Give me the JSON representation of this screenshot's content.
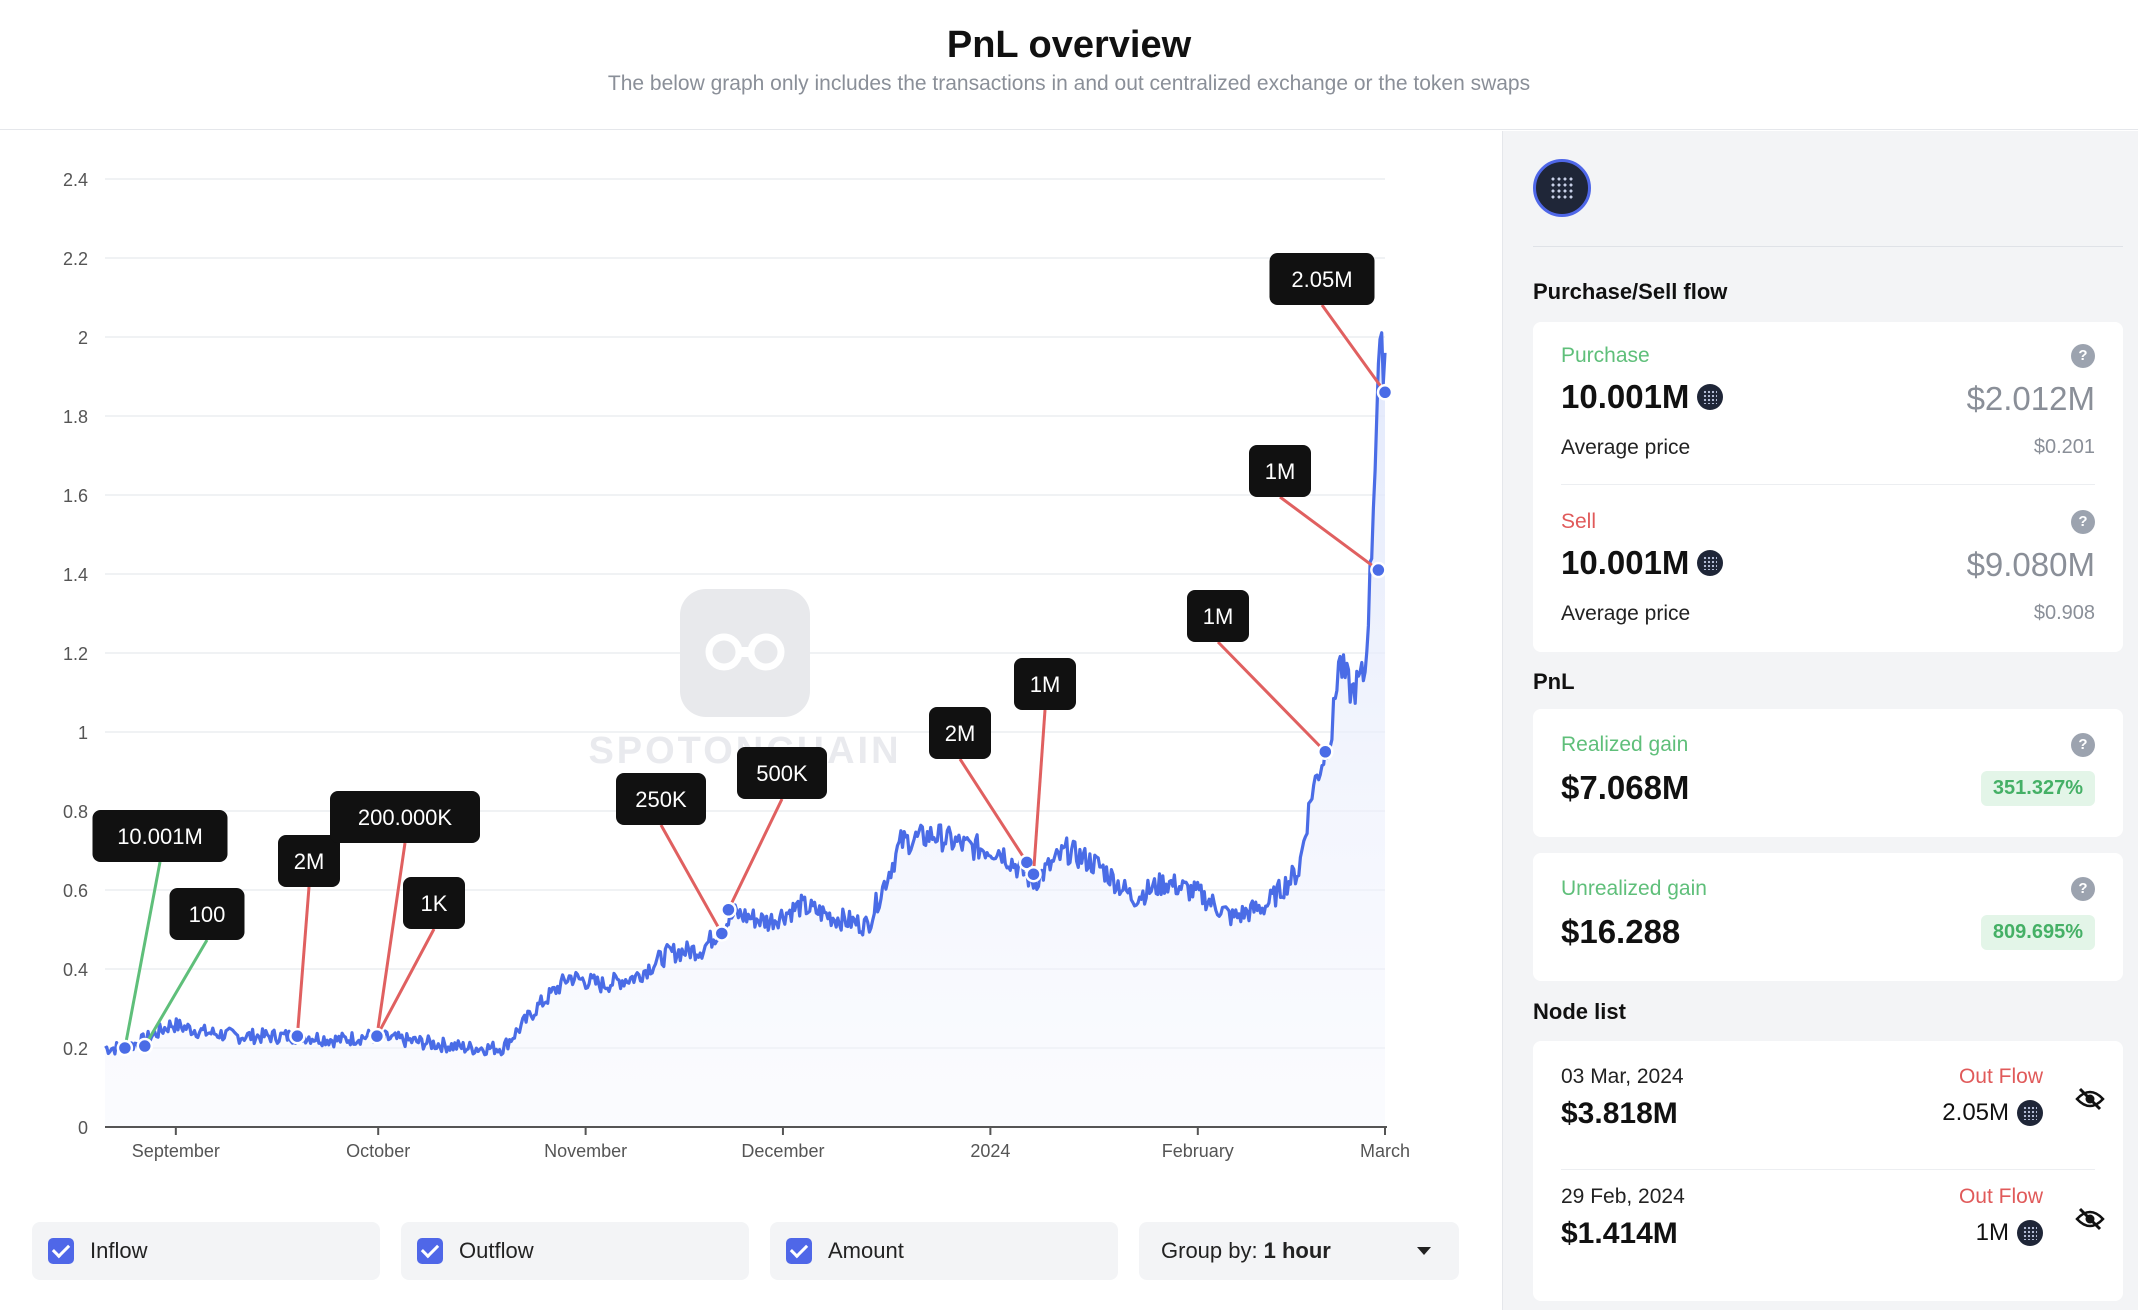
{
  "header": {
    "title": "PnL overview",
    "subtitle": "The below graph only includes the transactions in and out centralized exchange or the token swaps"
  },
  "watermark": "SPOTONCHAIN",
  "chart_data": {
    "type": "line",
    "yticks": [
      0,
      0.2,
      0.4,
      0.6,
      0.8,
      1,
      1.2,
      1.4,
      1.6,
      1.8,
      2,
      2.2,
      2.4
    ],
    "ylim": [
      0,
      2.4
    ],
    "xticks": [
      "September",
      "October",
      "November",
      "December",
      "2024",
      "February",
      "March"
    ],
    "series": [
      {
        "x": [
          0,
          3,
          6,
          10,
          15,
          20,
          25,
          30,
          35,
          40,
          45,
          50,
          55,
          60,
          65,
          70,
          75,
          80,
          85,
          90,
          95,
          100,
          105,
          110,
          115,
          120,
          125,
          130,
          135,
          140,
          145,
          150,
          155,
          160,
          165,
          170,
          175,
          180,
          182,
          185,
          186,
          188,
          190,
          191,
          192,
          193
        ],
        "y": [
          0.2,
          0.2,
          0.22,
          0.26,
          0.24,
          0.23,
          0.23,
          0.23,
          0.22,
          0.23,
          0.22,
          0.21,
          0.2,
          0.2,
          0.3,
          0.38,
          0.36,
          0.38,
          0.44,
          0.45,
          0.54,
          0.52,
          0.56,
          0.53,
          0.51,
          0.72,
          0.74,
          0.71,
          0.7,
          0.62,
          0.7,
          0.66,
          0.58,
          0.62,
          0.59,
          0.53,
          0.56,
          0.65,
          0.85,
          1.0,
          1.18,
          1.1,
          1.15,
          1.47,
          1.93,
          1.96
        ]
      }
    ]
  },
  "annotations": [
    {
      "label": "10.001M",
      "x": 3,
      "y": 0.2,
      "type": "inflow"
    },
    {
      "label": "100",
      "x": 6,
      "y": 0.205,
      "type": "inflow"
    },
    {
      "label": "2M",
      "x": 29,
      "y": 0.23,
      "type": "outflow"
    },
    {
      "label": "200.000K",
      "x": 41,
      "y": 0.23,
      "type": "outflow"
    },
    {
      "label": "1K",
      "x": 41,
      "y": 0.23,
      "type": "outflow"
    },
    {
      "label": "250K",
      "x": 93,
      "y": 0.49,
      "type": "outflow"
    },
    {
      "label": "500K",
      "x": 94,
      "y": 0.55,
      "type": "outflow"
    },
    {
      "label": "2M",
      "x": 139,
      "y": 0.67,
      "type": "outflow"
    },
    {
      "label": "1M",
      "x": 140,
      "y": 0.64,
      "type": "outflow"
    },
    {
      "label": "1M",
      "x": 184,
      "y": 0.95,
      "type": "outflow"
    },
    {
      "label": "1M",
      "x": 192,
      "y": 1.41,
      "type": "outflow"
    },
    {
      "label": "2.05M",
      "x": 193,
      "y": 1.86,
      "type": "outflow"
    }
  ],
  "controls": {
    "inflow": "Inflow",
    "outflow": "Outflow",
    "amount": "Amount",
    "group_label": "Group by:",
    "group_value": "1 hour"
  },
  "side": {
    "flow_title": "Purchase/Sell flow",
    "purchase": {
      "label": "Purchase",
      "amount": "10.001M",
      "usd": "$2.012M",
      "avg_label": "Average price",
      "avg": "$0.201"
    },
    "sell": {
      "label": "Sell",
      "amount": "10.001M",
      "usd": "$9.080M",
      "avg_label": "Average price",
      "avg": "$0.908"
    },
    "pnl_title": "PnL",
    "realized": {
      "label": "Realized gain",
      "value": "$7.068M",
      "pct": "351.327%"
    },
    "unrealized": {
      "label": "Unrealized gain",
      "value": "$16.288",
      "pct": "809.695%"
    },
    "node_title": "Node list",
    "nodes": [
      {
        "date": "03 Mar, 2024",
        "value": "$3.818M",
        "flow": "Out Flow",
        "amount": "2.05M"
      },
      {
        "date": "29 Feb, 2024",
        "value": "$1.414M",
        "flow": "Out Flow",
        "amount": "1M"
      }
    ]
  },
  "colors": {
    "line": "#4a6ce6",
    "inflow": "#5fbf7a",
    "outflow": "#e06060",
    "accent": "#4f67e8"
  }
}
